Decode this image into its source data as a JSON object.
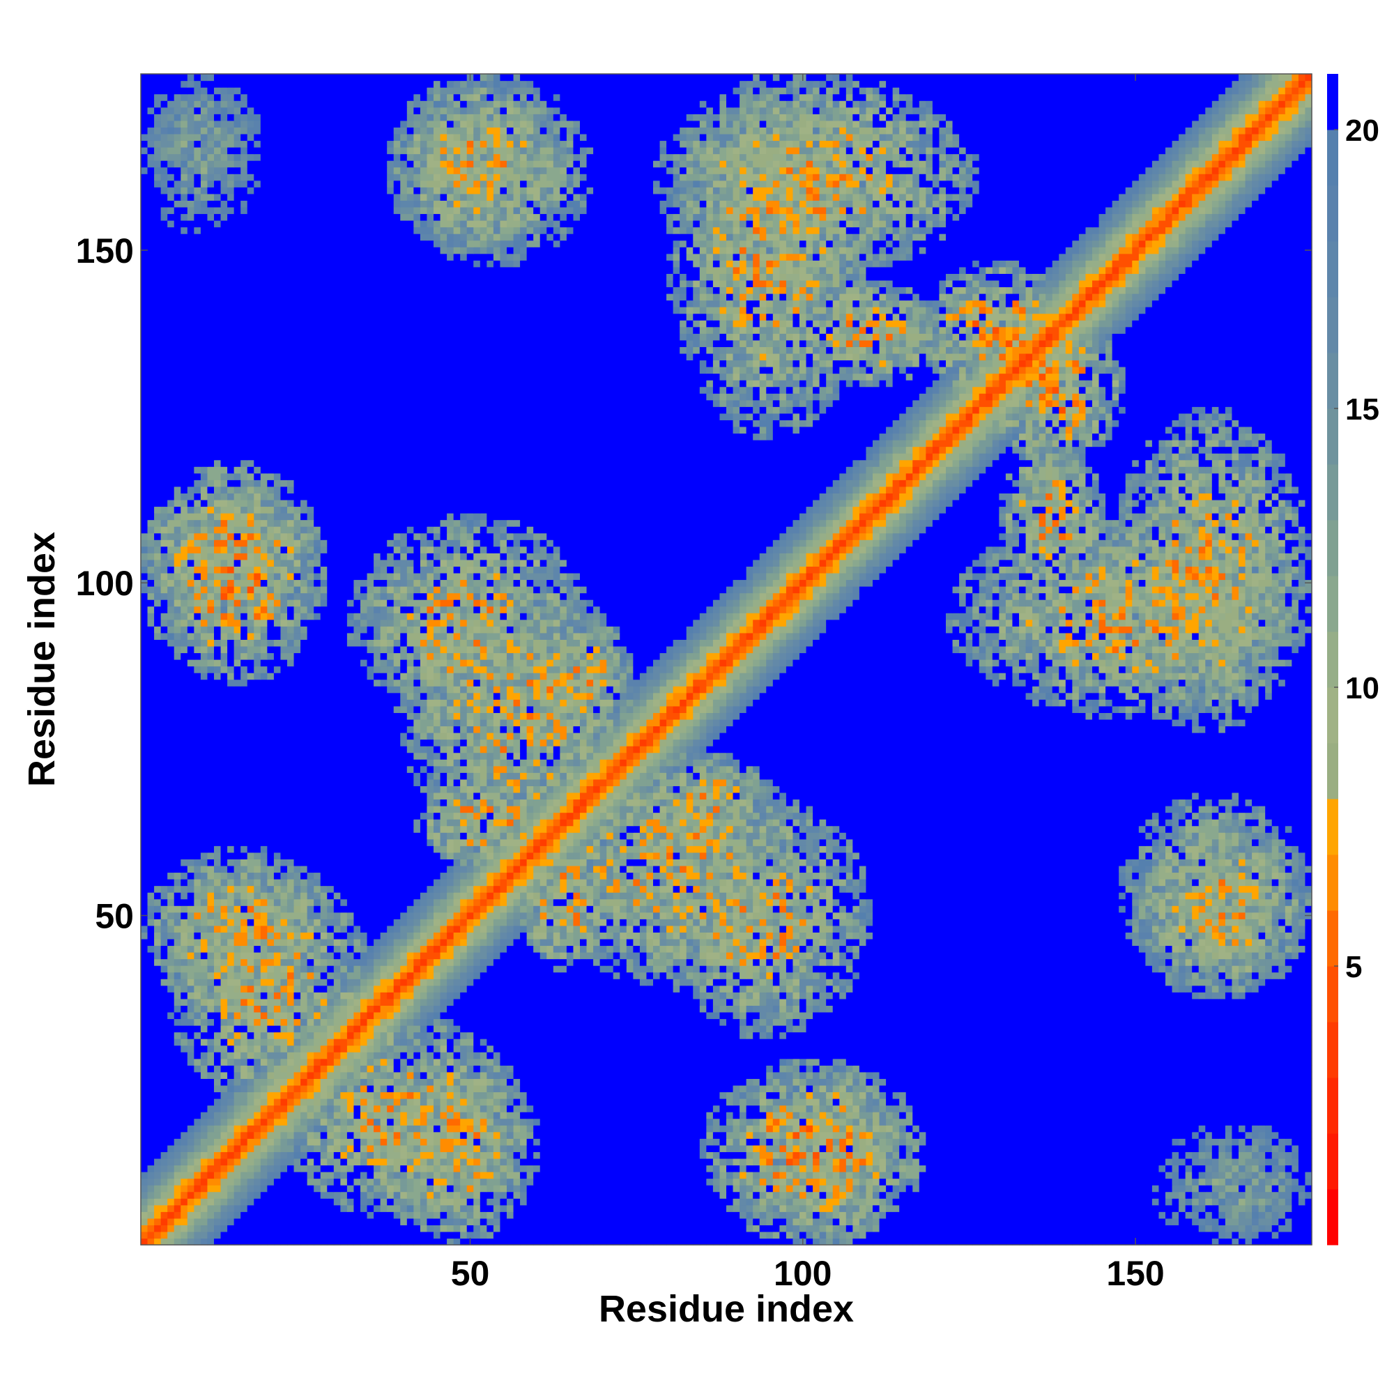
{
  "chart_data": {
    "type": "heatmap",
    "title": "",
    "xlabel": "Residue index",
    "ylabel": "Residue index",
    "n_residues": 176,
    "xlim": [
      1,
      176
    ],
    "ylim": [
      1,
      176
    ],
    "x_ticks": [
      50,
      100,
      150
    ],
    "y_ticks": [
      50,
      100,
      150
    ],
    "colorbar": {
      "ticks": [
        5,
        10,
        15,
        20
      ],
      "range": [
        0,
        21
      ],
      "levels": [
        {
          "max": 1,
          "color": "#ff0000"
        },
        {
          "max": 2,
          "color": "#ff1a00"
        },
        {
          "max": 3,
          "color": "#ff2a00"
        },
        {
          "max": 4,
          "color": "#ff3c00"
        },
        {
          "max": 5,
          "color": "#ff5000"
        },
        {
          "max": 6,
          "color": "#ff6a00"
        },
        {
          "max": 7,
          "color": "#ff8c00"
        },
        {
          "max": 8,
          "color": "#ffa500"
        },
        {
          "max": 9,
          "color": "#9aae82"
        },
        {
          "max": 10,
          "color": "#a0b285"
        },
        {
          "max": 11,
          "color": "#96ae88"
        },
        {
          "max": 12,
          "color": "#8aa88e"
        },
        {
          "max": 13,
          "color": "#80a192"
        },
        {
          "max": 14,
          "color": "#779a98"
        },
        {
          "max": 15,
          "color": "#6f939d"
        },
        {
          "max": 16,
          "color": "#698ea3"
        },
        {
          "max": 17,
          "color": "#6389a8"
        },
        {
          "max": 18,
          "color": "#5e86ab"
        },
        {
          "max": 19,
          "color": "#5a82ad"
        },
        {
          "max": 20,
          "color": "#5580ae"
        },
        {
          "max": 21,
          "color": "#0000ff"
        }
      ]
    },
    "distance_cap": 21,
    "diagonal_band_halfwidth": 10,
    "contact_regions": [
      {
        "x": [
          1,
          18
        ],
        "y": [
          158,
          176
        ],
        "min_distance": 12
      },
      {
        "x": [
          38,
          68
        ],
        "y": [
          148,
          176
        ],
        "min_distance": 8
      },
      {
        "x": [
          80,
          110
        ],
        "y": [
          122,
          176
        ],
        "min_distance": 7
      },
      {
        "x": [
          100,
          120
        ],
        "y": [
          130,
          145
        ],
        "min_distance": 6
      },
      {
        "x": [
          1,
          28
        ],
        "y": [
          95,
          115
        ],
        "min_distance": 7
      },
      {
        "x": [
          32,
          68
        ],
        "y": [
          78,
          110
        ],
        "min_distance": 7
      },
      {
        "x": [
          60,
          74
        ],
        "y": [
          76,
          96
        ],
        "min_distance": 7
      },
      {
        "x": [
          1,
          30
        ],
        "y": [
          35,
          60
        ],
        "min_distance": 7
      },
      {
        "x": [
          20,
          58
        ],
        "y": [
          5,
          35
        ],
        "min_distance": 7
      },
      {
        "x": [
          42,
          62
        ],
        "y": [
          58,
          70
        ],
        "min_distance": 6
      },
      {
        "x": [
          60,
          100
        ],
        "y": [
          40,
          75
        ],
        "min_distance": 7
      },
      {
        "x": [
          85,
          118
        ],
        "y": [
          1,
          28
        ],
        "min_distance": 6
      },
      {
        "x": [
          128,
          148
        ],
        "y": [
          118,
          140
        ],
        "min_distance": 6
      },
      {
        "x": [
          146,
          176
        ],
        "y": [
          78,
          126
        ],
        "min_distance": 7
      },
      {
        "x": [
          150,
          176
        ],
        "y": [
          38,
          64
        ],
        "min_distance": 7
      },
      {
        "x": [
          152,
          176
        ],
        "y": [
          1,
          18
        ],
        "min_distance": 12
      }
    ]
  }
}
